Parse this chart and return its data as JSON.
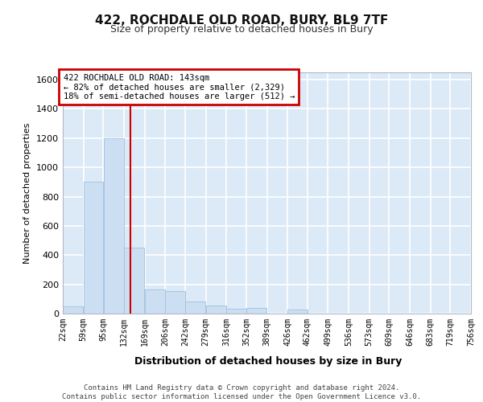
{
  "title": "422, ROCHDALE OLD ROAD, BURY, BL9 7TF",
  "subtitle": "Size of property relative to detached houses in Bury",
  "xlabel": "Distribution of detached houses by size in Bury",
  "ylabel": "Number of detached properties",
  "bar_color": "#ccdff2",
  "bar_edge_color": "#a0c0e0",
  "bg_color": "#dce9f7",
  "grid_color": "#ffffff",
  "fig_bg_color": "#ffffff",
  "red_line_x": 143,
  "annotation_line1": "422 ROCHDALE OLD ROAD: 143sqm",
  "annotation_line2": "← 82% of detached houses are smaller (2,329)",
  "annotation_line3": "18% of semi-detached houses are larger (512) →",
  "footer": "Contains HM Land Registry data © Crown copyright and database right 2024.\nContains public sector information licensed under the Open Government Licence v3.0.",
  "bin_edges": [
    22,
    59,
    95,
    132,
    169,
    206,
    242,
    279,
    316,
    352,
    389,
    426,
    462,
    499,
    536,
    573,
    609,
    646,
    683,
    719,
    756
  ],
  "bar_heights": [
    50,
    900,
    1200,
    450,
    165,
    155,
    80,
    55,
    35,
    40,
    0,
    28,
    0,
    0,
    0,
    0,
    0,
    0,
    0,
    0
  ],
  "ylim": [
    0,
    1650
  ],
  "yticks": [
    0,
    200,
    400,
    600,
    800,
    1000,
    1200,
    1400,
    1600
  ]
}
